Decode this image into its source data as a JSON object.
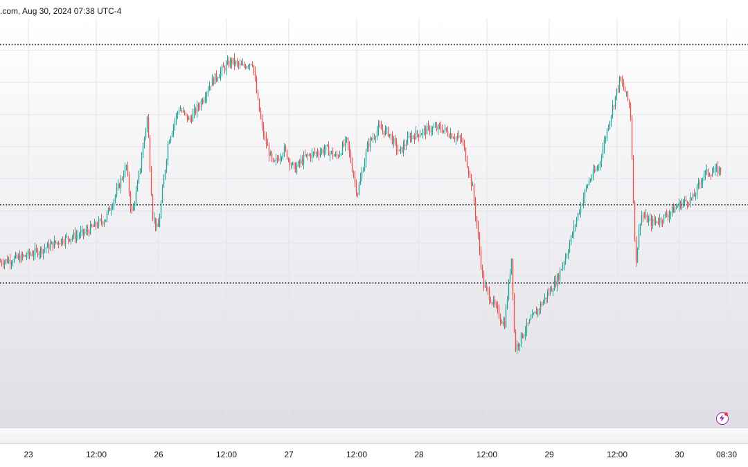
{
  "header": {
    "text": ".com, Aug 30, 2024 07:38 UTC-4"
  },
  "chart_data": {
    "type": "candlestick",
    "title": "",
    "xlabel": "",
    "ylabel": "",
    "x_ticks": [
      "23",
      "12:00",
      "26",
      "12:00",
      "27",
      "12:00",
      "28",
      "12:00",
      "29",
      "12:00",
      "30",
      "08:30"
    ],
    "y_range": [
      0,
      100
    ],
    "horizontal_levels": [
      {
        "name": "upper-level",
        "value": 93.5,
        "style": "dotted"
      },
      {
        "name": "middle-level",
        "value": 54.4,
        "style": "dotted"
      },
      {
        "name": "lower-level",
        "value": 35.3,
        "style": "dotted"
      }
    ],
    "up_color": "#26a69a",
    "down_color": "#ef5350",
    "price_path": [
      {
        "t": 0,
        "v": 40.5
      },
      {
        "t": 2,
        "v": 41.5
      },
      {
        "t": 4,
        "v": 43.5
      },
      {
        "t": 6,
        "v": 46.0
      },
      {
        "t": 8,
        "v": 47.5
      },
      {
        "t": 10,
        "v": 51.0
      },
      {
        "t": 11,
        "v": 57.0
      },
      {
        "t": 12,
        "v": 64.0
      },
      {
        "t": 12.5,
        "v": 52.0
      },
      {
        "t": 13,
        "v": 58.0
      },
      {
        "t": 14,
        "v": 76.0
      },
      {
        "t": 14.5,
        "v": 52.0
      },
      {
        "t": 15,
        "v": 48.0
      },
      {
        "t": 16,
        "v": 70.0
      },
      {
        "t": 17,
        "v": 78.0
      },
      {
        "t": 18,
        "v": 75.0
      },
      {
        "t": 19,
        "v": 79.0
      },
      {
        "t": 20,
        "v": 84.0
      },
      {
        "t": 21,
        "v": 87.0
      },
      {
        "t": 22,
        "v": 89.5
      },
      {
        "t": 23,
        "v": 88.0
      },
      {
        "t": 24,
        "v": 89.5
      },
      {
        "t": 24.5,
        "v": 80.0
      },
      {
        "t": 25,
        "v": 72.0
      },
      {
        "t": 26,
        "v": 64.0
      },
      {
        "t": 27,
        "v": 68.0
      },
      {
        "t": 28,
        "v": 63.0
      },
      {
        "t": 29,
        "v": 66.0
      },
      {
        "t": 30,
        "v": 67.0
      },
      {
        "t": 31,
        "v": 68.0
      },
      {
        "t": 32,
        "v": 66.0
      },
      {
        "t": 33,
        "v": 70.0
      },
      {
        "t": 34,
        "v": 57.0
      },
      {
        "t": 35,
        "v": 69.0
      },
      {
        "t": 36,
        "v": 73.0
      },
      {
        "t": 37,
        "v": 72.0
      },
      {
        "t": 38,
        "v": 67.0
      },
      {
        "t": 39,
        "v": 71.0
      },
      {
        "t": 40,
        "v": 72.0
      },
      {
        "t": 41,
        "v": 73.0
      },
      {
        "t": 42,
        "v": 73.0
      },
      {
        "t": 43,
        "v": 71.5
      },
      {
        "t": 44,
        "v": 70.0
      },
      {
        "t": 45,
        "v": 58.0
      },
      {
        "t": 46,
        "v": 35.0
      },
      {
        "t": 47,
        "v": 30.0
      },
      {
        "t": 48,
        "v": 25.0
      },
      {
        "t": 48.7,
        "v": 42.0
      },
      {
        "t": 49,
        "v": 19.0
      },
      {
        "t": 50,
        "v": 24.0
      },
      {
        "t": 51,
        "v": 28.0
      },
      {
        "t": 52,
        "v": 32.0
      },
      {
        "t": 53,
        "v": 36.0
      },
      {
        "t": 54,
        "v": 43.0
      },
      {
        "t": 55,
        "v": 52.0
      },
      {
        "t": 56,
        "v": 60.0
      },
      {
        "t": 57,
        "v": 64.0
      },
      {
        "t": 58,
        "v": 75.0
      },
      {
        "t": 59,
        "v": 85.0
      },
      {
        "t": 59.5,
        "v": 82.0
      },
      {
        "t": 60,
        "v": 78.0
      },
      {
        "t": 60.5,
        "v": 40.0
      },
      {
        "t": 61,
        "v": 52.0
      },
      {
        "t": 62,
        "v": 50.0
      },
      {
        "t": 63,
        "v": 51.0
      },
      {
        "t": 64,
        "v": 53.0
      },
      {
        "t": 65,
        "v": 55.0
      },
      {
        "t": 66,
        "v": 56.0
      },
      {
        "t": 67,
        "v": 62.0
      },
      {
        "t": 68,
        "v": 62.5
      },
      {
        "t": 68.6,
        "v": 63.0
      }
    ]
  }
}
